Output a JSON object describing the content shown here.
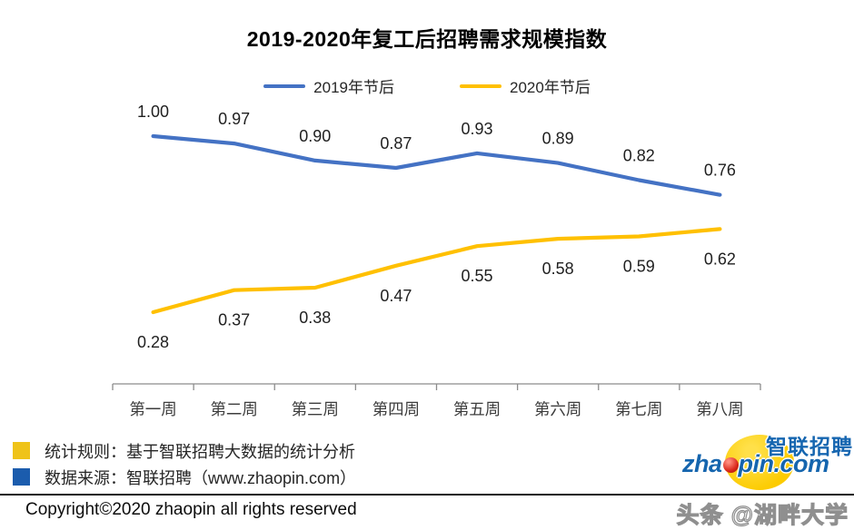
{
  "chart_data": {
    "type": "line",
    "title": "2019-2020年复工后招聘需求规模指数",
    "categories": [
      "第一周",
      "第二周",
      "第三周",
      "第四周",
      "第五周",
      "第六周",
      "第七周",
      "第八周"
    ],
    "series": [
      {
        "name": "2019年节后",
        "color": "#4472C4",
        "label_position": "above",
        "values": [
          1.0,
          0.97,
          0.9,
          0.87,
          0.93,
          0.89,
          0.82,
          0.76
        ]
      },
      {
        "name": "2020年节后",
        "color": "#FFC000",
        "label_position": "below",
        "values": [
          0.28,
          0.37,
          0.38,
          0.47,
          0.55,
          0.58,
          0.59,
          0.62
        ]
      }
    ],
    "xlabel": "",
    "ylabel": "",
    "ylim": [
      0,
      1.05
    ],
    "grid": false,
    "legend_position": "top",
    "data_labels": true,
    "axis_color": "#8C8C8C",
    "label_color": "#1f1f1f",
    "tick_label_color": "#3d3d3d"
  },
  "footnotes": {
    "items": [
      {
        "color": "#EFC319",
        "text": "统计规则：基于智联招聘大数据的统计分析"
      },
      {
        "color": "#1B5CAD",
        "text": "数据来源：智联招聘（www.zhaopin.com）"
      }
    ],
    "copyright": "Copyright©2020 zhaopin all rights reserved"
  },
  "logo": {
    "cn_text": "智联招聘",
    "en_text_pre": "zha",
    "en_text_post": "pin.com",
    "red_dot_icon": "red-ball-o-icon"
  },
  "watermark": "头条 @湖畔大学"
}
